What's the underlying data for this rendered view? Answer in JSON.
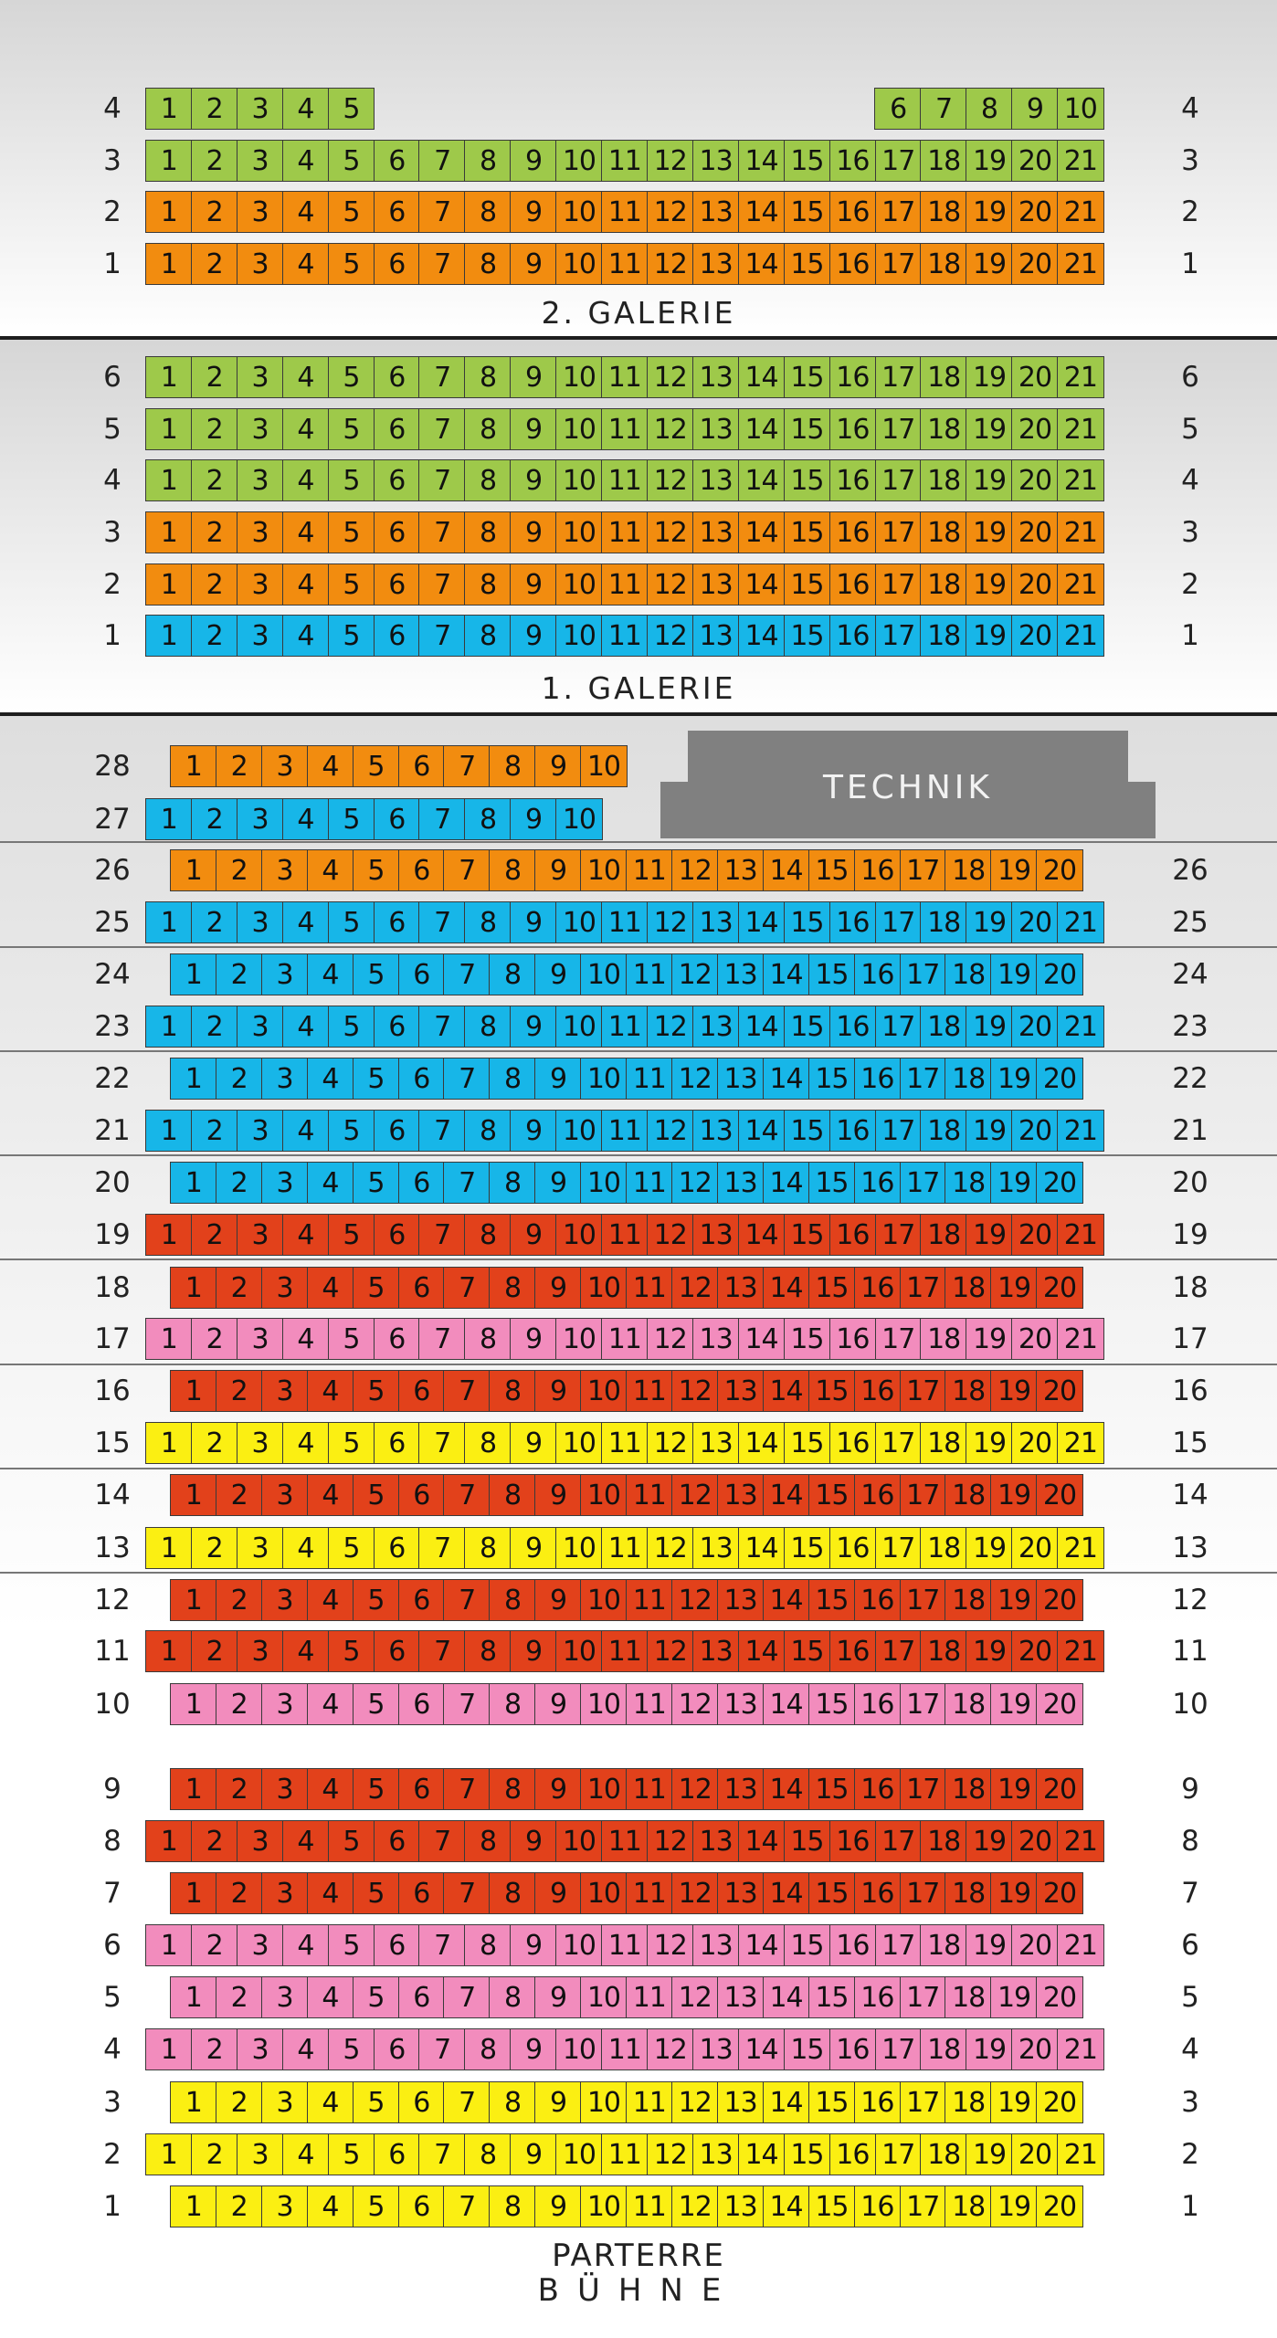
{
  "colors": {
    "green": "#9ec94a",
    "orange": "#f28c0f",
    "blue": "#17b6e8",
    "red": "#e2411b",
    "pink": "#f28cbd",
    "yellow": "#fbef12",
    "technik": "#808080"
  },
  "sections": {
    "galerie2": "2. GALERIE",
    "galerie1": "1. GALERIE",
    "parterre": "PARTERRE",
    "buehne": "BÜHNE",
    "technik": "TECHNIK"
  },
  "rows": [
    {
      "section": "galerie2",
      "row": 4,
      "color": "green",
      "blocks": [
        {
          "from": 1,
          "to": 5
        },
        {
          "from": 6,
          "to": 10
        }
      ]
    },
    {
      "section": "galerie2",
      "row": 3,
      "color": "green",
      "blocks": [
        {
          "from": 1,
          "to": 21
        }
      ]
    },
    {
      "section": "galerie2",
      "row": 2,
      "color": "orange",
      "blocks": [
        {
          "from": 1,
          "to": 21
        }
      ]
    },
    {
      "section": "galerie2",
      "row": 1,
      "color": "orange",
      "blocks": [
        {
          "from": 1,
          "to": 21
        }
      ]
    },
    {
      "section": "galerie1",
      "row": 6,
      "color": "green",
      "blocks": [
        {
          "from": 1,
          "to": 21
        }
      ]
    },
    {
      "section": "galerie1",
      "row": 5,
      "color": "green",
      "blocks": [
        {
          "from": 1,
          "to": 21
        }
      ]
    },
    {
      "section": "galerie1",
      "row": 4,
      "color": "green",
      "blocks": [
        {
          "from": 1,
          "to": 21
        }
      ]
    },
    {
      "section": "galerie1",
      "row": 3,
      "color": "orange",
      "blocks": [
        {
          "from": 1,
          "to": 21
        }
      ]
    },
    {
      "section": "galerie1",
      "row": 2,
      "color": "orange",
      "blocks": [
        {
          "from": 1,
          "to": 21
        }
      ]
    },
    {
      "section": "galerie1",
      "row": 1,
      "color": "blue",
      "blocks": [
        {
          "from": 1,
          "to": 21
        }
      ]
    },
    {
      "section": "parterre",
      "row": 28,
      "color": "orange",
      "blocks": [
        {
          "from": 1,
          "to": 10
        }
      ]
    },
    {
      "section": "parterre",
      "row": 27,
      "color": "blue",
      "blocks": [
        {
          "from": 1,
          "to": 10
        }
      ]
    },
    {
      "section": "parterre",
      "row": 26,
      "color": "orange",
      "blocks": [
        {
          "from": 1,
          "to": 20
        }
      ]
    },
    {
      "section": "parterre",
      "row": 25,
      "color": "blue",
      "blocks": [
        {
          "from": 1,
          "to": 21
        }
      ]
    },
    {
      "section": "parterre",
      "row": 24,
      "color": "blue",
      "blocks": [
        {
          "from": 1,
          "to": 20
        }
      ]
    },
    {
      "section": "parterre",
      "row": 23,
      "color": "blue",
      "blocks": [
        {
          "from": 1,
          "to": 21
        }
      ]
    },
    {
      "section": "parterre",
      "row": 22,
      "color": "blue",
      "blocks": [
        {
          "from": 1,
          "to": 20
        }
      ]
    },
    {
      "section": "parterre",
      "row": 21,
      "color": "blue",
      "blocks": [
        {
          "from": 1,
          "to": 21
        }
      ]
    },
    {
      "section": "parterre",
      "row": 20,
      "color": "blue",
      "blocks": [
        {
          "from": 1,
          "to": 20
        }
      ]
    },
    {
      "section": "parterre",
      "row": 19,
      "color": "red",
      "blocks": [
        {
          "from": 1,
          "to": 21
        }
      ]
    },
    {
      "section": "parterre",
      "row": 18,
      "color": "red",
      "blocks": [
        {
          "from": 1,
          "to": 20
        }
      ]
    },
    {
      "section": "parterre",
      "row": 17,
      "color": "pink",
      "blocks": [
        {
          "from": 1,
          "to": 21
        }
      ]
    },
    {
      "section": "parterre",
      "row": 16,
      "color": "red",
      "blocks": [
        {
          "from": 1,
          "to": 20
        }
      ]
    },
    {
      "section": "parterre",
      "row": 15,
      "color": "yellow",
      "blocks": [
        {
          "from": 1,
          "to": 21
        }
      ]
    },
    {
      "section": "parterre",
      "row": 14,
      "color": "red",
      "blocks": [
        {
          "from": 1,
          "to": 20
        }
      ]
    },
    {
      "section": "parterre",
      "row": 13,
      "color": "yellow",
      "blocks": [
        {
          "from": 1,
          "to": 21
        }
      ]
    },
    {
      "section": "parterre",
      "row": 12,
      "color": "red",
      "blocks": [
        {
          "from": 1,
          "to": 20
        }
      ]
    },
    {
      "section": "parterre",
      "row": 11,
      "color": "red",
      "blocks": [
        {
          "from": 1,
          "to": 21
        }
      ]
    },
    {
      "section": "parterre",
      "row": 10,
      "color": "pink",
      "blocks": [
        {
          "from": 1,
          "to": 20
        }
      ]
    },
    {
      "section": "parterre",
      "row": 9,
      "color": "red",
      "blocks": [
        {
          "from": 1,
          "to": 20
        }
      ]
    },
    {
      "section": "parterre",
      "row": 8,
      "color": "red",
      "blocks": [
        {
          "from": 1,
          "to": 21
        }
      ]
    },
    {
      "section": "parterre",
      "row": 7,
      "color": "red",
      "blocks": [
        {
          "from": 1,
          "to": 20
        }
      ]
    },
    {
      "section": "parterre",
      "row": 6,
      "color": "pink",
      "blocks": [
        {
          "from": 1,
          "to": 21
        }
      ]
    },
    {
      "section": "parterre",
      "row": 5,
      "color": "pink",
      "blocks": [
        {
          "from": 1,
          "to": 20
        }
      ]
    },
    {
      "section": "parterre",
      "row": 4,
      "color": "pink",
      "blocks": [
        {
          "from": 1,
          "to": 21
        }
      ]
    },
    {
      "section": "parterre",
      "row": 3,
      "color": "yellow",
      "blocks": [
        {
          "from": 1,
          "to": 20
        }
      ]
    },
    {
      "section": "parterre",
      "row": 2,
      "color": "yellow",
      "blocks": [
        {
          "from": 1,
          "to": 21
        }
      ]
    },
    {
      "section": "parterre",
      "row": 1,
      "color": "yellow",
      "blocks": [
        {
          "from": 1,
          "to": 20
        }
      ]
    }
  ]
}
